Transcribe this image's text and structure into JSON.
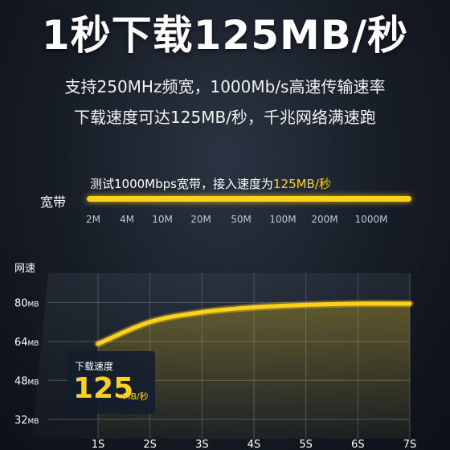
{
  "headline": "1秒下载125MB/秒",
  "subtitle_line1": "支持250MHz频宽，1000Mb/s高速传输速率",
  "subtitle_line2": "下载速度可达125MB/秒，千兆网络满速跑",
  "bandwidth": {
    "caption_prefix": "测试1000Mbps宽带，接入速度为",
    "caption_highlight": "125MB/秒",
    "label": "宽带",
    "ticks": [
      "2M",
      "4M",
      "10M",
      "20M",
      "50M",
      "100M",
      "200M",
      "1000M"
    ]
  },
  "speed_chart": {
    "title": "网速",
    "badge_label": "下载速度",
    "badge_value": "125",
    "badge_unit": "MB/秒",
    "line_color": "#ffd21a"
  },
  "chart_data": {
    "type": "line",
    "ylabel": "网速",
    "x": [
      "1S",
      "2S",
      "3S",
      "4S",
      "5S",
      "6S",
      "7S"
    ],
    "ylim": [
      24,
      92
    ],
    "y_ticks": [
      {
        "value": 80,
        "num": "80",
        "unit": "MB"
      },
      {
        "value": 64,
        "num": "64",
        "unit": "MB"
      },
      {
        "value": 48,
        "num": "48",
        "unit": "MB"
      },
      {
        "value": 32,
        "num": "32",
        "unit": "MB"
      }
    ],
    "series": [
      {
        "values": [
          63,
          72,
          76,
          78,
          79,
          79.5,
          79.5
        ]
      }
    ]
  }
}
